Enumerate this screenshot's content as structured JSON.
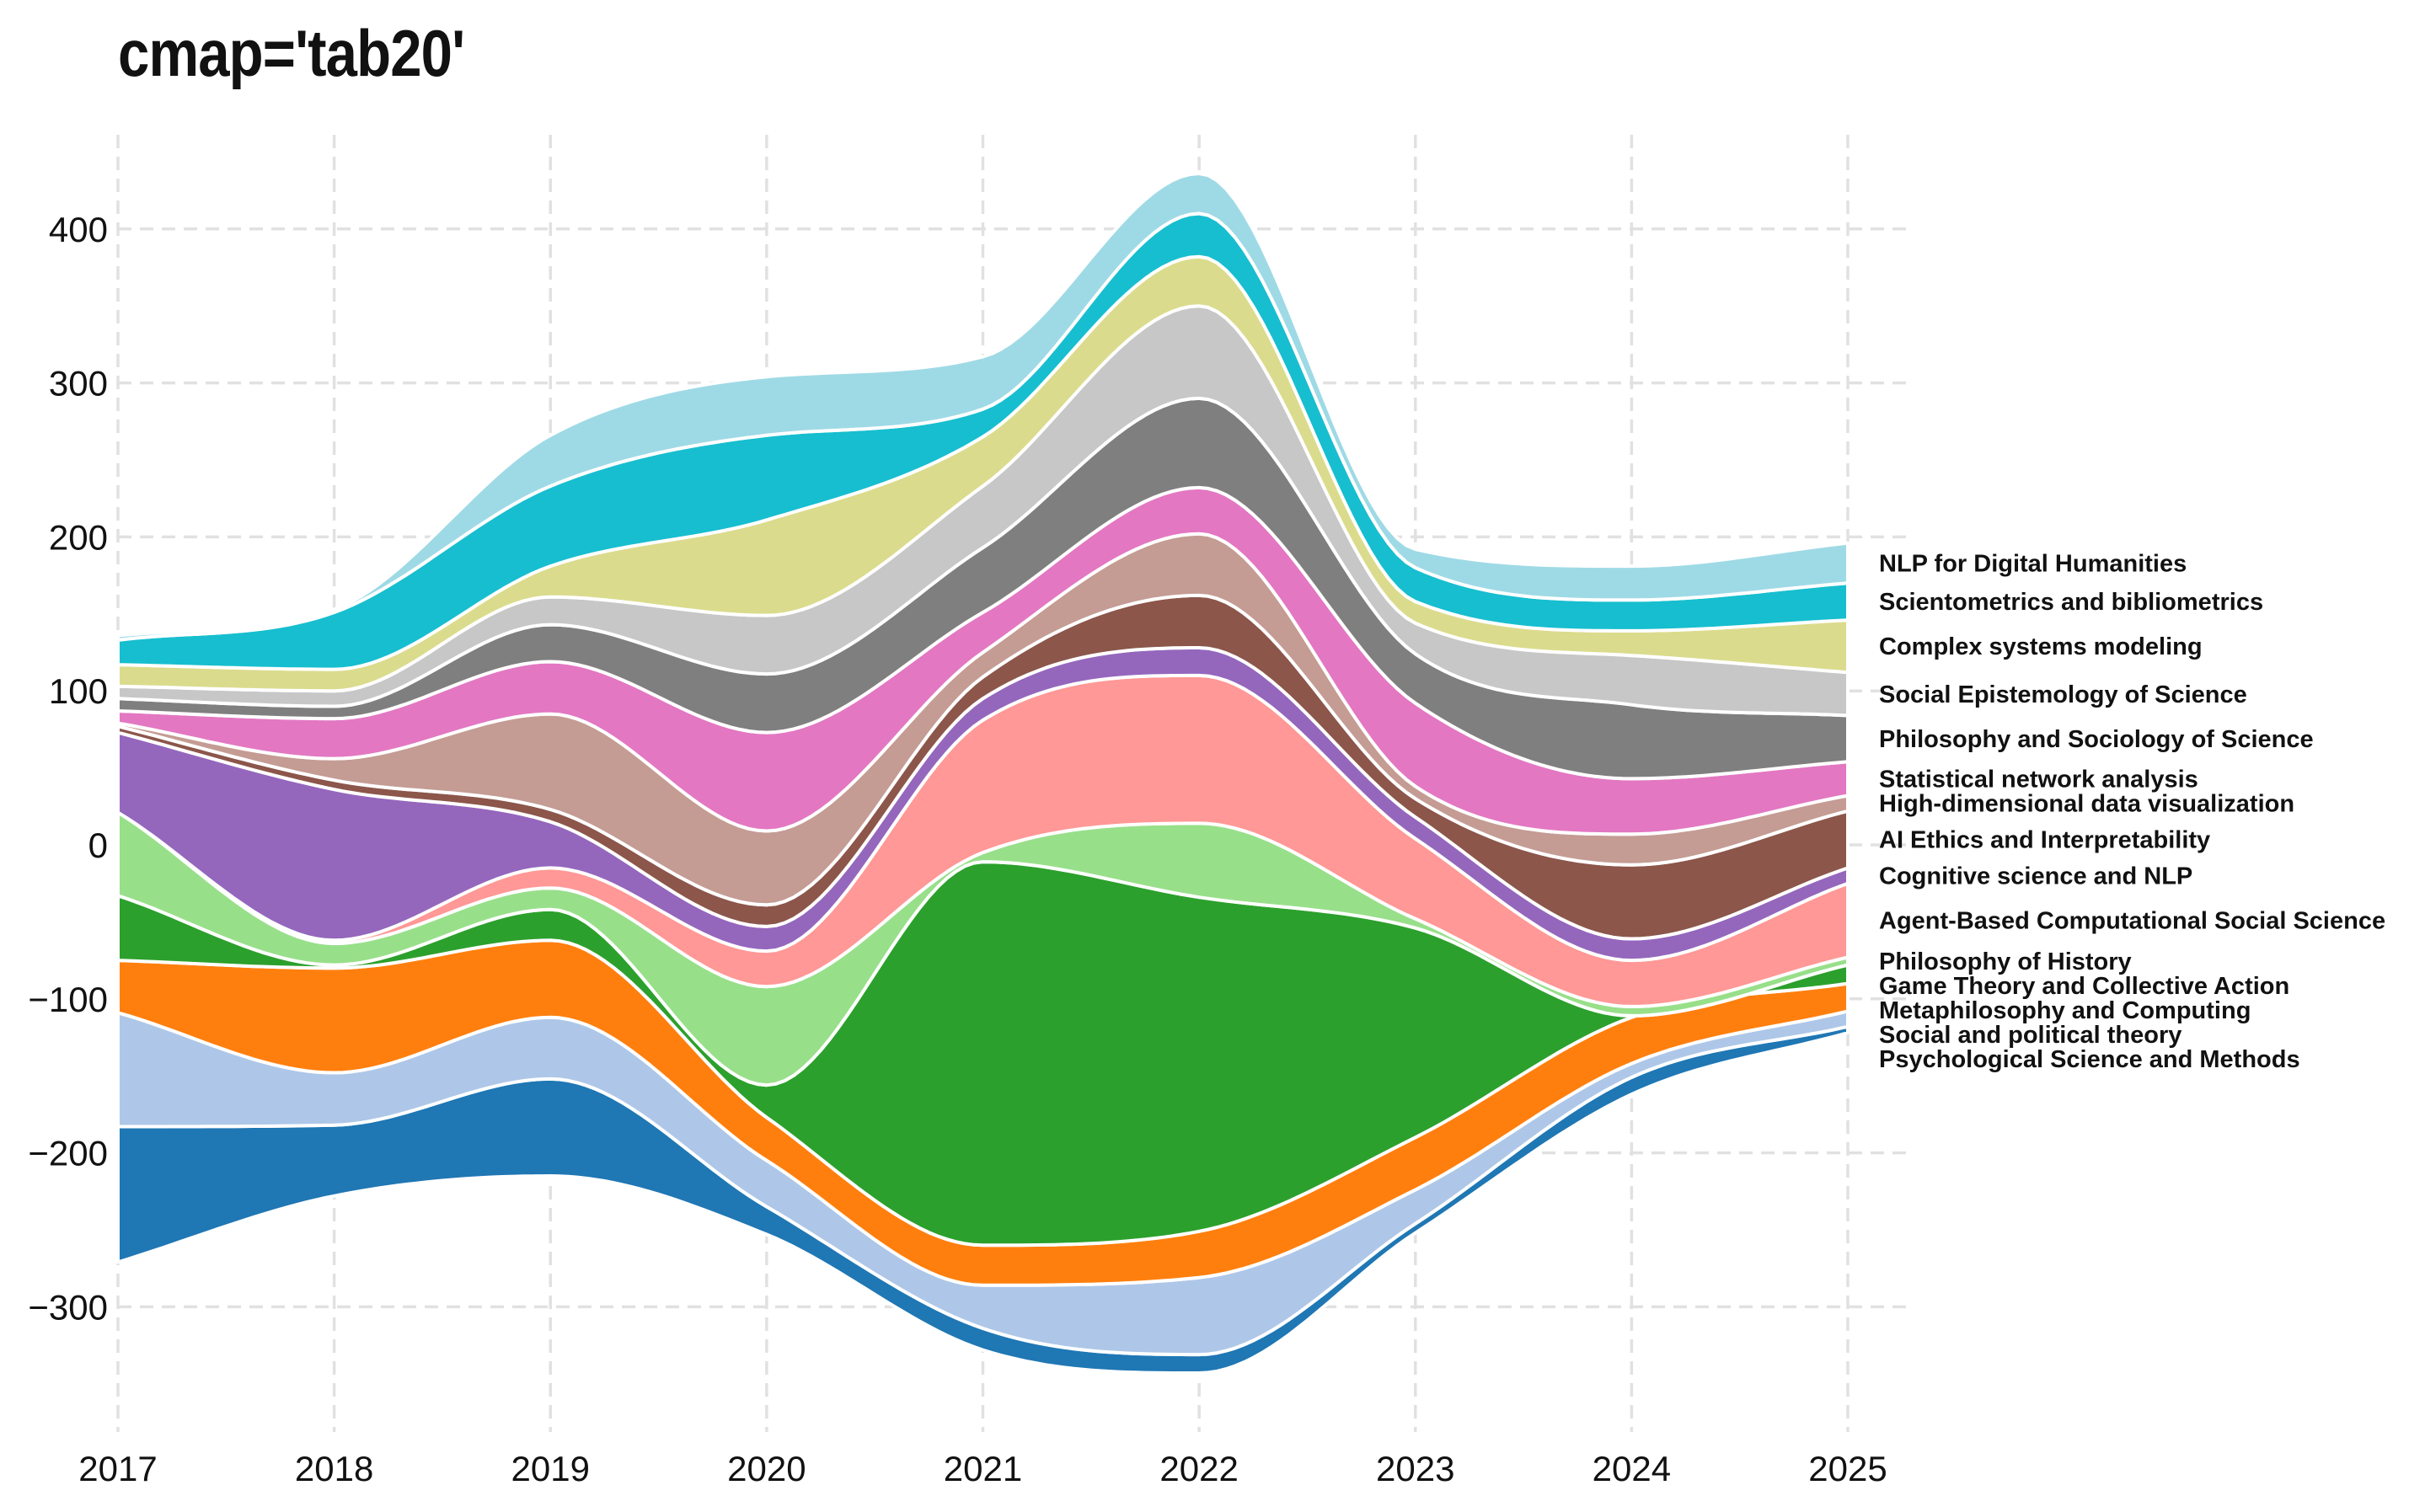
{
  "chart_data": {
    "type": "area",
    "title": "cmap='tab20'",
    "xlabel": "",
    "ylabel": "",
    "x": [
      2017,
      2018,
      2019,
      2020,
      2021,
      2022,
      2023,
      2024,
      2025
    ],
    "ylim": [
      -385,
      460
    ],
    "xlim": [
      2017,
      2025.3
    ],
    "yticks": [
      -300,
      -200,
      -100,
      0,
      100,
      200,
      300,
      400
    ],
    "ytick_labels": [
      "−300",
      "−200",
      "−100",
      "0",
      "100",
      "200",
      "300",
      "400"
    ],
    "xtick_labels": [
      "2017",
      "2018",
      "2019",
      "2020",
      "2021",
      "2022",
      "2023",
      "2024",
      "2025"
    ],
    "grid": true,
    "legend_placement": "right, inline labels at series ends",
    "baseline": [
      -271,
      -228,
      -215,
      -253,
      -328,
      -343,
      -252,
      -162,
      -122
    ],
    "series": [
      {
        "name": "Psychological Science and Methods",
        "color": "#1f77b4",
        "values": [
          88,
          46,
          63,
          18,
          14,
          12,
          6,
          11,
          4
        ]
      },
      {
        "name": "Social and political theory",
        "color": "#aec7e8",
        "values": [
          74,
          34,
          40,
          30,
          28,
          50,
          22,
          9,
          10
        ]
      },
      {
        "name": "Metaphilosophy and Computing",
        "color": "#ff7f0e",
        "values": [
          34,
          68,
          50,
          28,
          26,
          30,
          34,
          30,
          18
        ]
      },
      {
        "name": "Game Theory and Collective Action",
        "color": "#2ca02c",
        "values": [
          42,
          2,
          20,
          21,
          249,
          217,
          136,
          1,
          12
        ]
      },
      {
        "name": "Philosophy of History",
        "color": "#98df8a",
        "values": [
          54,
          14,
          14,
          64,
          6,
          48,
          6,
          6,
          5
        ]
      },
      {
        "name": "Agent-Based Computational Social Science",
        "color": "#ff9896",
        "values": [
          0,
          2,
          13,
          23,
          86,
          96,
          52,
          30,
          48
        ]
      },
      {
        "name": "Cognitive science and NLP",
        "color": "#9467bd",
        "values": [
          52,
          98,
          30,
          16,
          14,
          18,
          14,
          14,
          10
        ]
      },
      {
        "name": "AI Ethics and Interpretability",
        "color": "#8c564b",
        "values": [
          4,
          6,
          8,
          14,
          14,
          34,
          12,
          48,
          37
        ]
      },
      {
        "name": "High-dimensional data visualization",
        "color": "#c49c94",
        "values": [
          2,
          14,
          62,
          48,
          16,
          40,
          8,
          20,
          10
        ]
      },
      {
        "name": "Statistical network analysis",
        "color": "#e377c2",
        "values": [
          8,
          26,
          34,
          64,
          26,
          30,
          54,
          36,
          22
        ]
      },
      {
        "name": "Philosophy and Sociology of Science",
        "color": "#7f7f7f",
        "values": [
          8,
          8,
          24,
          38,
          42,
          58,
          32,
          48,
          30
        ]
      },
      {
        "name": "Social Epistemology of Science",
        "color": "#c7c7c7",
        "values": [
          8,
          10,
          18,
          38,
          40,
          60,
          20,
          32,
          28
        ]
      },
      {
        "name": "Complex systems modeling",
        "color": "#dbdb8d",
        "values": [
          14,
          14,
          20,
          62,
          32,
          32,
          14,
          16,
          34
        ]
      },
      {
        "name": "Scientometrics and bibliometrics",
        "color": "#17becf",
        "values": [
          16,
          37,
          52,
          55,
          18,
          28,
          22,
          20,
          24
        ]
      },
      {
        "name": "NLP for Digital Humanities",
        "color": "#9edae5",
        "values": [
          3,
          2,
          33,
          38,
          34,
          26,
          12,
          22,
          26
        ]
      }
    ],
    "annotations": []
  }
}
